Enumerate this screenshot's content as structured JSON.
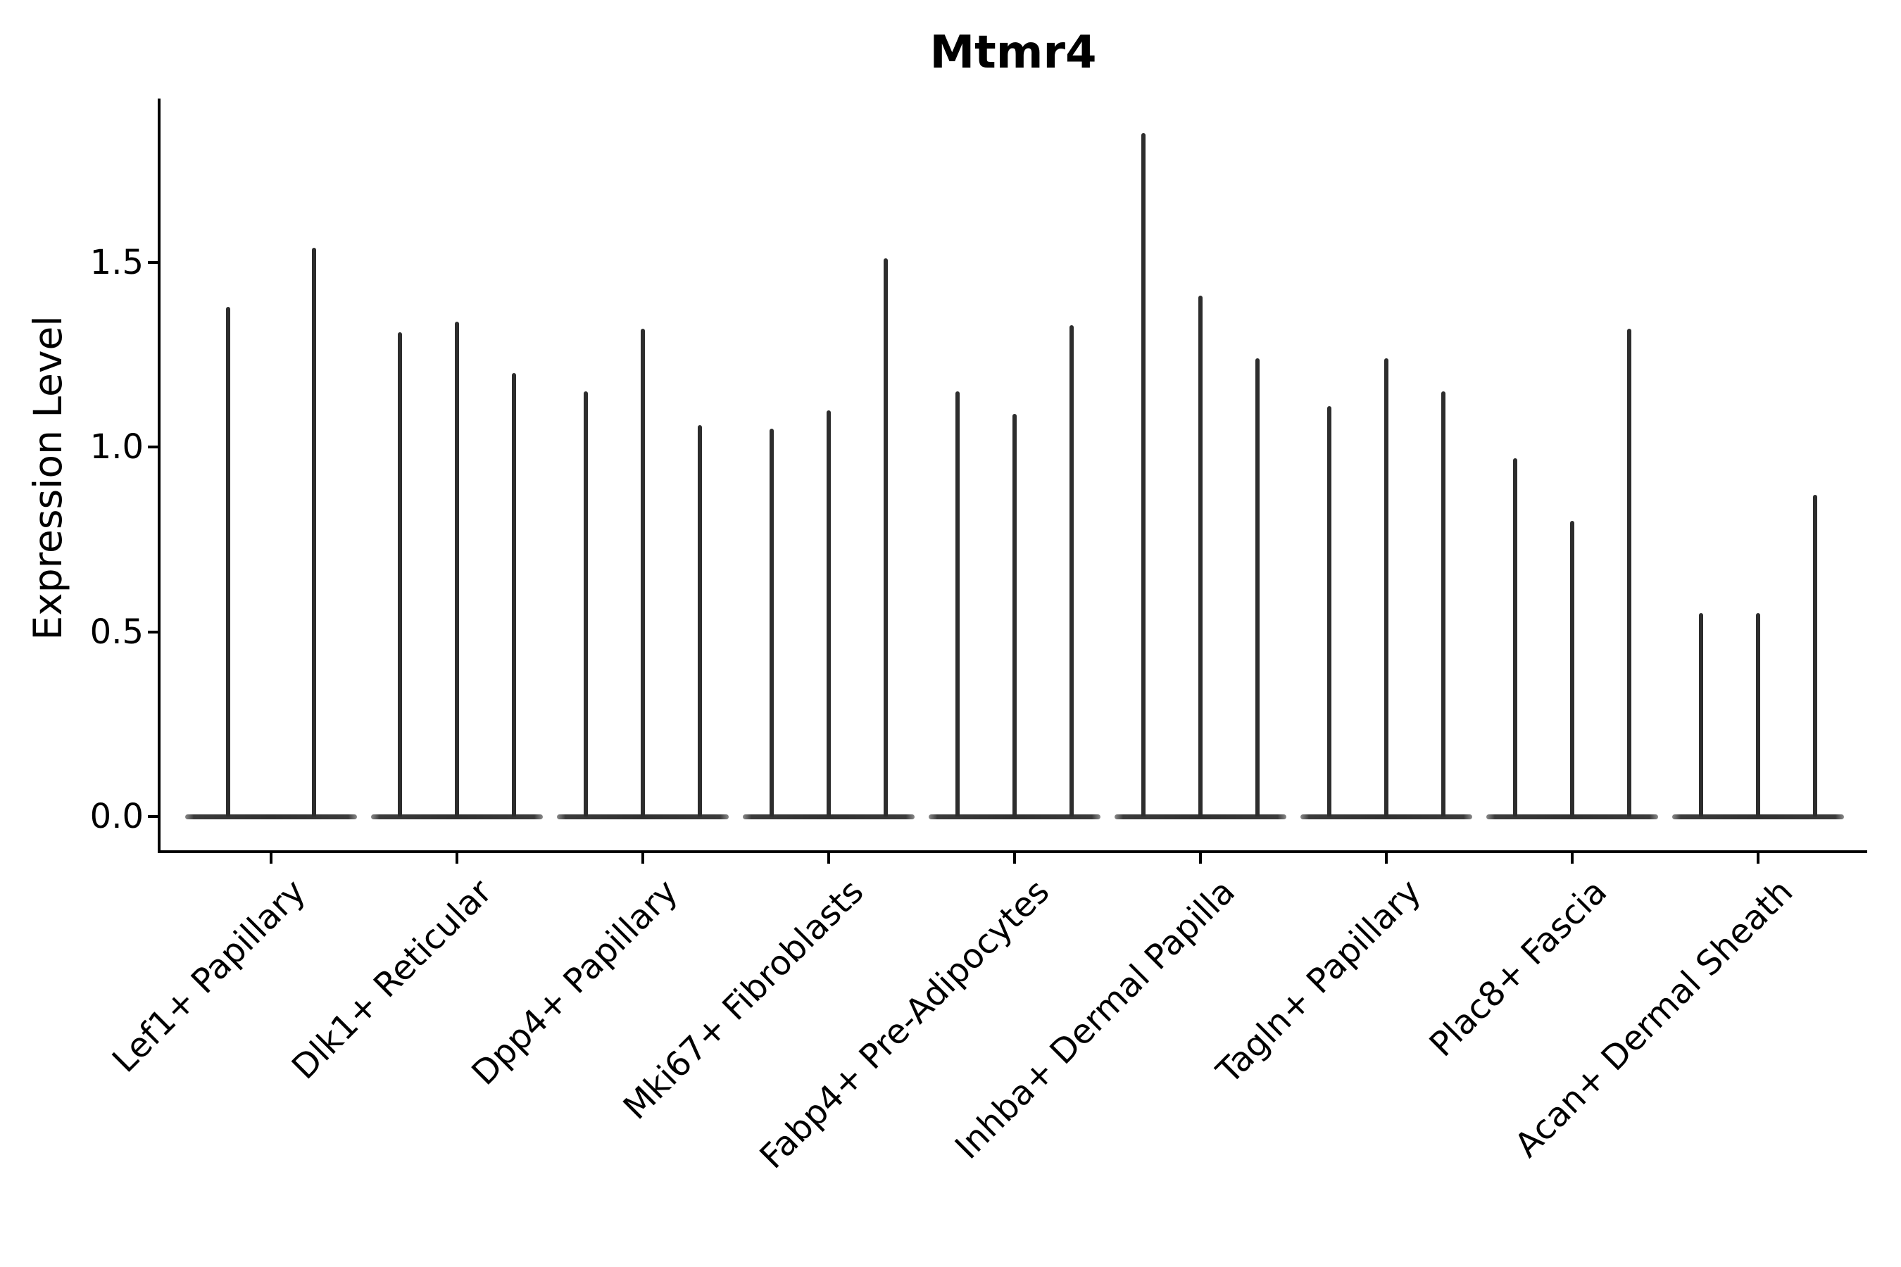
{
  "chart_data": {
    "type": "violin",
    "title": "Mtmr4",
    "ylabel": "Expression Level",
    "xlabel": "",
    "legend": "none",
    "grid": false,
    "ylim": [
      -0.095,
      1.94
    ],
    "yticks": [
      {
        "label": "0.0",
        "value": 0.0
      },
      {
        "label": "0.5",
        "value": 0.5
      },
      {
        "label": "1.0",
        "value": 1.0
      },
      {
        "label": "1.5",
        "value": 1.5
      }
    ],
    "style_note": "Each violin is collapsed to a thin vertical spike with its bulk (flat lens) at expression 0; spike height equals the violin maximum.",
    "groups": [
      {
        "label": "Lef1+ Papillary",
        "spike_maxima": [
          1.38,
          1.54
        ]
      },
      {
        "label": "Dlk1+ Reticular",
        "spike_maxima": [
          1.31,
          1.34,
          1.2
        ]
      },
      {
        "label": "Dpp4+ Papillary",
        "spike_maxima": [
          1.15,
          1.32,
          1.06
        ]
      },
      {
        "label": "Mki67+ Fibroblasts",
        "spike_maxima": [
          1.05,
          1.1,
          1.51
        ]
      },
      {
        "label": "Fabp4+ Pre-Adipocytes",
        "spike_maxima": [
          1.15,
          1.09,
          1.33
        ]
      },
      {
        "label": "Inhba+ Dermal Papilla",
        "spike_maxima": [
          1.85,
          1.41,
          1.24
        ]
      },
      {
        "label": "Tagln+ Papillary",
        "spike_maxima": [
          1.11,
          1.24,
          1.15
        ]
      },
      {
        "label": "Plac8+ Fascia",
        "spike_maxima": [
          0.97,
          0.8,
          1.32
        ]
      },
      {
        "label": "Acan+ Dermal Sheath",
        "spike_maxima": [
          0.55,
          0.55,
          0.87
        ]
      }
    ],
    "colors": {
      "spike": "#2d2d2d",
      "baseline": "#3a3a3a",
      "axis": "#000000",
      "text": "#000000",
      "background": "#ffffff"
    }
  }
}
